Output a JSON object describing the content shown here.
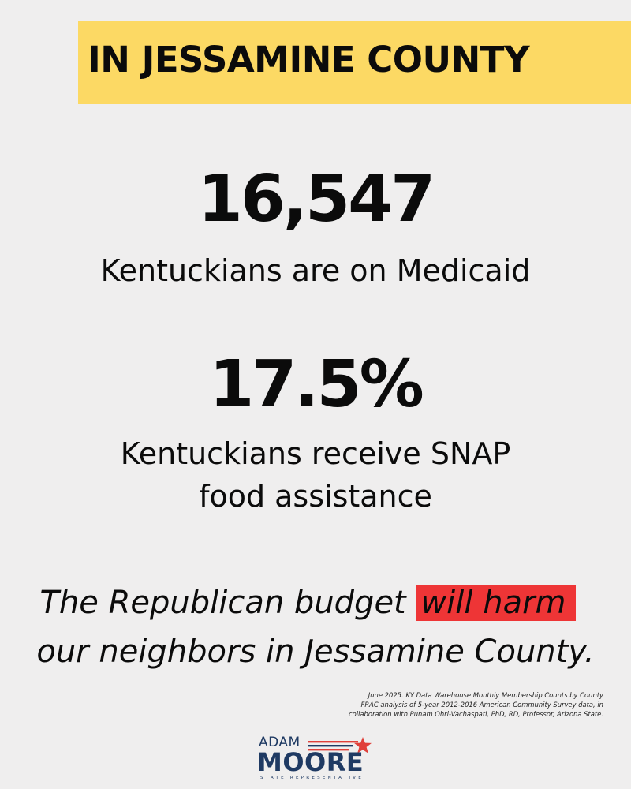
{
  "header": {
    "title": "IN JESSAMINE COUNTY"
  },
  "stats": [
    {
      "value": "16,547",
      "label_lines": [
        "Kentuckians are on Medicaid"
      ]
    },
    {
      "value": "17.5%",
      "label_lines": [
        "Kentuckians receive SNAP",
        "food assistance"
      ]
    }
  ],
  "message": {
    "line1_prefix": "The Republican budget ",
    "line1_highlight": "will harm",
    "line2": "our neighbors in Jessamine County."
  },
  "sources": [
    "June 2025. KY Data Warehouse Monthly Membership Counts by County",
    "FRAC analysis of 5-year 2012-2016 American Community Survey data, in",
    "collaboration with Punam Ohri-Vachaspati, PhD, RD, Professor, Arizona State."
  ],
  "logo": {
    "first_name": "ADAM",
    "last_name": "MOORE",
    "subtitle": "STATE REPRESENTATIVE",
    "icon": "star-icon"
  },
  "colors": {
    "background": "#efeeee",
    "banner": "#fcd964",
    "highlight": "#ee3536",
    "logo_navy": "#1f3a63",
    "logo_red": "#e0403a"
  }
}
